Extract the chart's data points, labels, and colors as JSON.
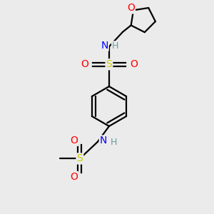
{
  "bg_color": "#ebebeb",
  "atom_colors": {
    "C": "#000000",
    "H": "#6a9a9a",
    "N": "#0000ff",
    "O": "#ff0000",
    "S": "#cccc00"
  },
  "bond_color": "#000000",
  "line_width": 1.6,
  "figsize": [
    3.0,
    3.0
  ],
  "dpi": 100
}
